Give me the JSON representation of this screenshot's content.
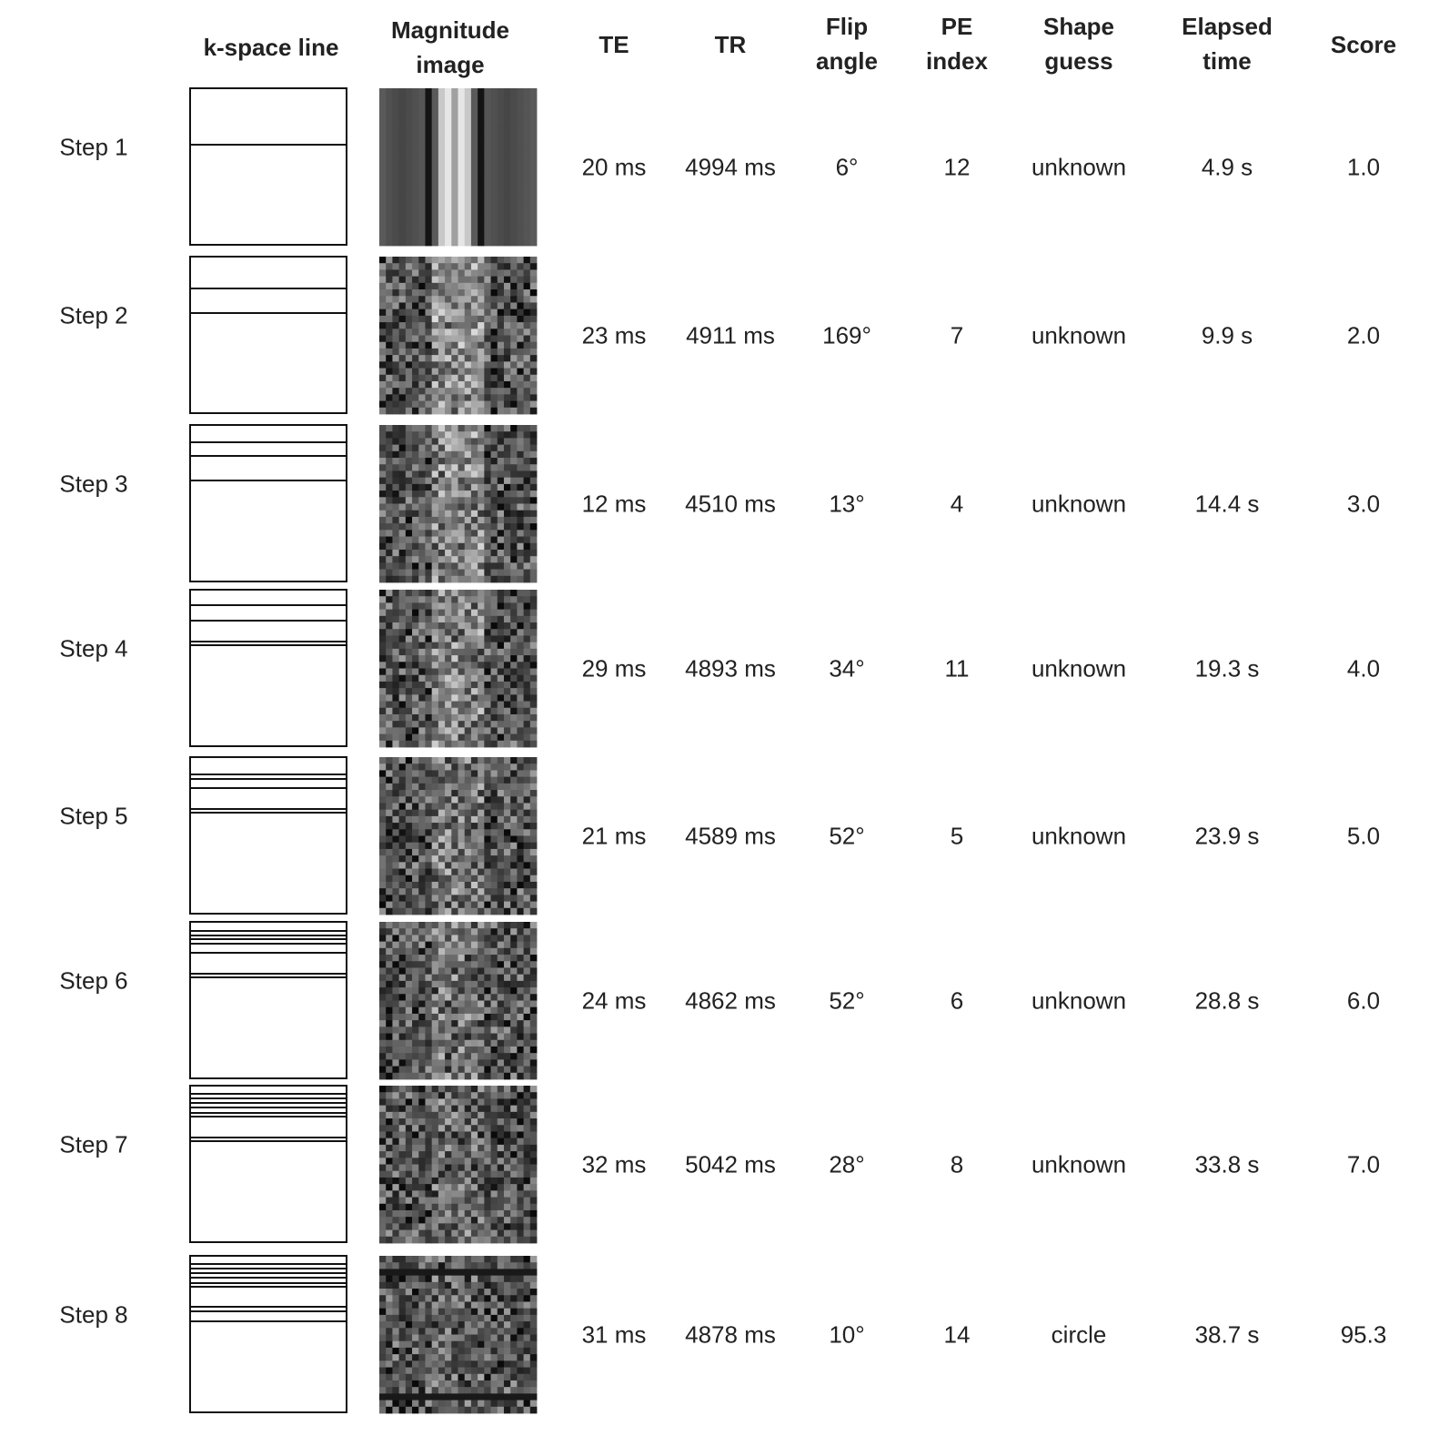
{
  "header": {
    "columns": [
      "k-space line",
      "Magnitude image",
      "TE",
      "TR",
      "Flip angle",
      "PE index",
      "Shape guess",
      "Elapsed time",
      "Score"
    ]
  },
  "table": {
    "rows": [
      [
        "Step 1",
        "20 ms",
        "4994 ms",
        "6°",
        "12",
        "unknown",
        "4.9 s",
        "1.0"
      ],
      [
        "Step 2",
        "23 ms",
        "4911 ms",
        "169°",
        "7",
        "unknown",
        "9.9 s",
        "2.0"
      ],
      [
        "Step 3",
        "12 ms",
        "4510 ms",
        "13°",
        "4",
        "unknown",
        "14.4 s",
        "3.0"
      ],
      [
        "Step 4",
        "29 ms",
        "4893 ms",
        "34°",
        "11",
        "unknown",
        "19.3 s",
        "4.0"
      ],
      [
        "Step 5",
        "21 ms",
        "4589 ms",
        "52°",
        "5",
        "unknown",
        "23.9 s",
        "5.0"
      ],
      [
        "Step 6",
        "24 ms",
        "4862 ms",
        "52°",
        "6",
        "unknown",
        "28.8 s",
        "6.0"
      ],
      [
        "Step 7",
        "32 ms",
        "5042 ms",
        "28°",
        "8",
        "unknown",
        "33.8 s",
        "7.0"
      ],
      [
        "Step 8",
        "31 ms",
        "4878 ms",
        "10°",
        "14",
        "circle",
        "38.7 s",
        "95.3"
      ]
    ]
  }
}
